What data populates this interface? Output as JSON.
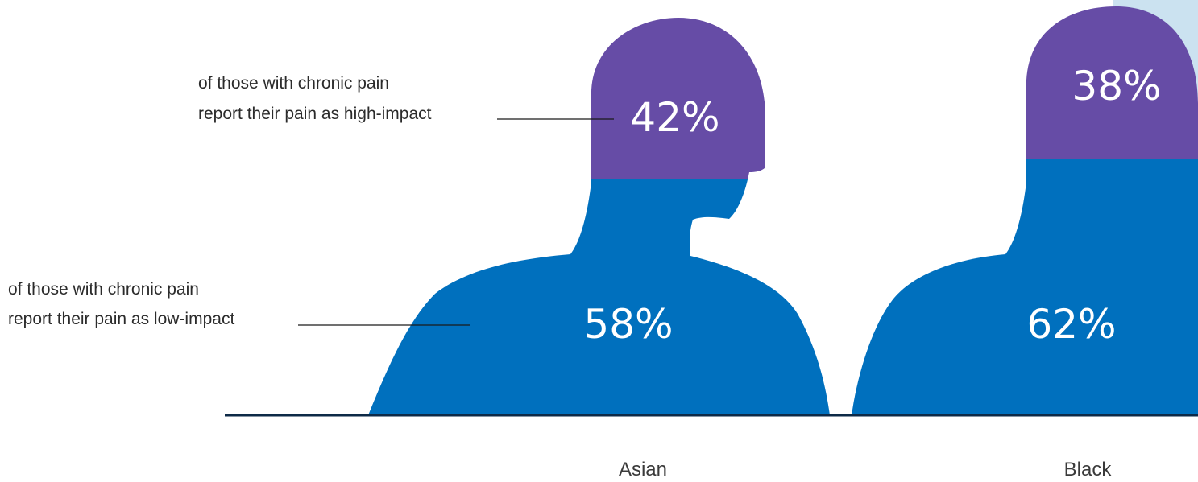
{
  "chart_data": {
    "type": "bar",
    "categories": [
      "Asian",
      "Black"
    ],
    "series": [
      {
        "name": "high-impact",
        "values": [
          42,
          38
        ]
      },
      {
        "name": "low-impact",
        "values": [
          58,
          62
        ]
      }
    ],
    "labels": {
      "high": [
        "42%",
        "38%"
      ],
      "low": [
        "58%",
        "62%"
      ]
    },
    "annotations": {
      "high_line1": "of those with chronic pain",
      "high_line2": "report their pain as high-impact",
      "low_line1": "of those with chronic pain",
      "low_line2": "report their pain as low-impact"
    },
    "ylim": [
      0,
      100
    ],
    "legend": "none",
    "grid": false
  },
  "colors": {
    "high_impact": "#664ca6",
    "low_impact": "#0070be",
    "panel": "#cbe2f0",
    "baseline": "#0e2a47",
    "annotation_line": "#1a1a1a"
  }
}
